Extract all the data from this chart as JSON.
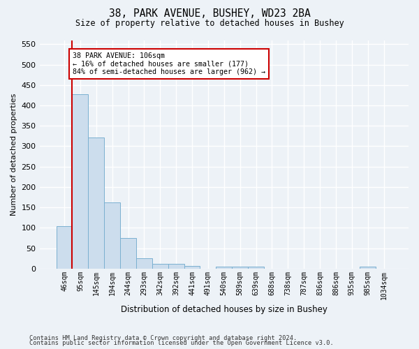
{
  "title_line1": "38, PARK AVENUE, BUSHEY, WD23 2BA",
  "title_line2": "Size of property relative to detached houses in Bushey",
  "xlabel": "Distribution of detached houses by size in Bushey",
  "ylabel": "Number of detached properties",
  "bar_labels": [
    "46sqm",
    "95sqm",
    "145sqm",
    "194sqm",
    "244sqm",
    "293sqm",
    "342sqm",
    "392sqm",
    "441sqm",
    "491sqm",
    "540sqm",
    "589sqm",
    "639sqm",
    "688sqm",
    "738sqm",
    "787sqm",
    "836sqm",
    "886sqm",
    "935sqm",
    "985sqm",
    "1034sqm"
  ],
  "bar_values": [
    104,
    427,
    322,
    162,
    75,
    25,
    12,
    12,
    7,
    0,
    5,
    5,
    5,
    0,
    0,
    0,
    0,
    0,
    0,
    5,
    0
  ],
  "bar_color": "#ccdded",
  "bar_edge_color": "#7ab0d0",
  "subject_line_color": "#cc0000",
  "annotation_text": "38 PARK AVENUE: 106sqm\n← 16% of detached houses are smaller (177)\n84% of semi-detached houses are larger (962) →",
  "annotation_box_facecolor": "#ffffff",
  "annotation_box_edgecolor": "#cc0000",
  "ylim": [
    0,
    560
  ],
  "yticks": [
    0,
    50,
    100,
    150,
    200,
    250,
    300,
    350,
    400,
    450,
    500,
    550
  ],
  "footer_line1": "Contains HM Land Registry data © Crown copyright and database right 2024.",
  "footer_line2": "Contains public sector information licensed under the Open Government Licence v3.0.",
  "bg_color": "#edf2f7",
  "plot_bg_color": "#edf2f7",
  "grid_color": "#ffffff"
}
